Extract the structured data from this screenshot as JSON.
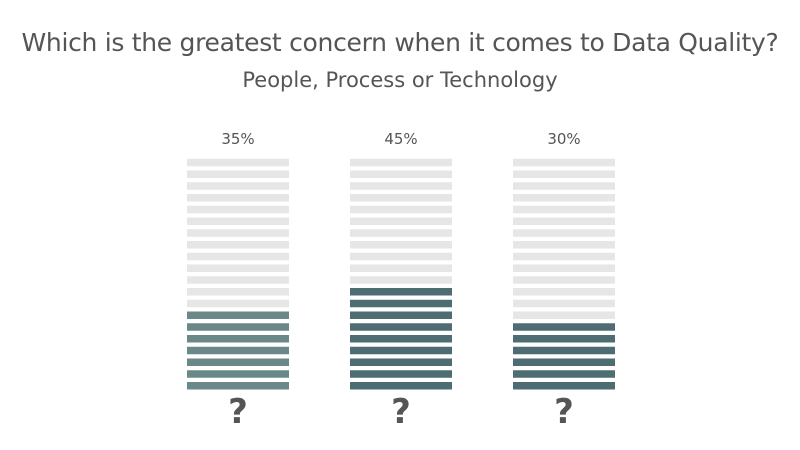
{
  "title": "Which is the greatest concern when it comes to Data Quality?",
  "subtitle": "People, Process or Technology",
  "colors": {
    "empty": "#e6e6e6",
    "people": "#6a8888",
    "process": "#4e6d72",
    "technology": "#4e6d72",
    "text": "#555555"
  },
  "chart_data": {
    "type": "bar",
    "title": "Which is the greatest concern when it comes to Data Quality?",
    "subtitle": "People, Process or Technology",
    "categories": [
      "?",
      "?",
      "?"
    ],
    "values": [
      35,
      45,
      30
    ],
    "value_labels": [
      "35%",
      "45%",
      "30%"
    ],
    "ylim": [
      0,
      100
    ],
    "grid": false,
    "legend": "none"
  }
}
